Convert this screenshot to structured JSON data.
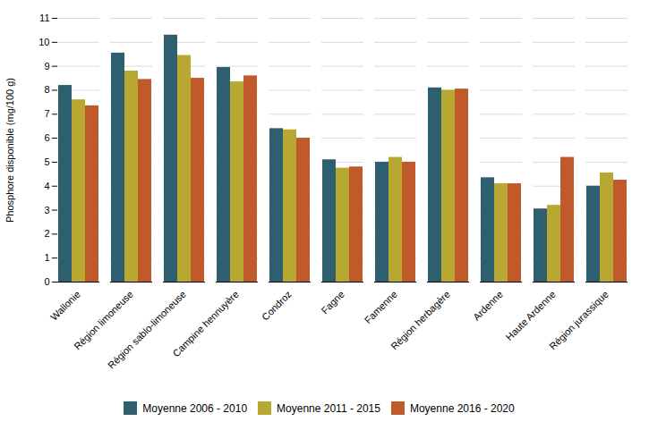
{
  "chart_data": {
    "type": "bar",
    "ylabel": "Phosphore disponible (mg/100 g)",
    "categories": [
      "Wallonie",
      "Région limoneuse",
      "Région sablo-limoneuse",
      "Campine hennuyère",
      "Condroz",
      "Fagne",
      "Famenne",
      "Région herbagère",
      "Ardenne",
      "Haute Ardenne",
      "Région jurassique"
    ],
    "series": [
      {
        "name": "Moyenne 2006 - 2010",
        "color": "#2d5f6e",
        "values": [
          8.2,
          9.55,
          10.3,
          8.95,
          6.4,
          5.1,
          5.0,
          8.1,
          4.35,
          3.05,
          4.0
        ]
      },
      {
        "name": "Moyenne 2011 - 2015",
        "color": "#b8a832",
        "values": [
          7.6,
          8.8,
          9.45,
          8.35,
          6.35,
          4.75,
          5.2,
          8.0,
          4.1,
          3.2,
          4.55
        ]
      },
      {
        "name": "Moyenne 2016 - 2020",
        "color": "#c05a2a",
        "values": [
          7.35,
          8.45,
          8.5,
          8.6,
          6.0,
          4.8,
          5.0,
          8.05,
          4.1,
          5.2,
          4.25
        ]
      }
    ],
    "ylim": [
      0,
      11
    ],
    "yticks": [
      0,
      1,
      2,
      3,
      4,
      5,
      6,
      7,
      8,
      9,
      10,
      11
    ],
    "grid": true,
    "legend": "bottom"
  }
}
